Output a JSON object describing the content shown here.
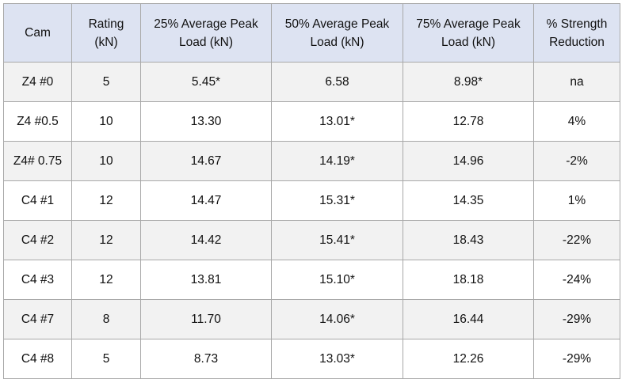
{
  "table": {
    "headers": [
      [
        "Cam"
      ],
      [
        "Rating",
        "(kN)"
      ],
      [
        "25% Average Peak",
        "Load (kN)"
      ],
      [
        "50% Average Peak",
        "Load (kN)"
      ],
      [
        "75% Average Peak",
        "Load (kN)"
      ],
      [
        "% Strength",
        "Reduction"
      ]
    ],
    "rows": [
      [
        "Z4 #0",
        "5",
        "5.45*",
        "6.58",
        "8.98*",
        "na"
      ],
      [
        "Z4 #0.5",
        "10",
        "13.30",
        "13.01*",
        "12.78",
        "4%"
      ],
      [
        "Z4# 0.75",
        "10",
        "14.67",
        "14.19*",
        "14.96",
        "-2%"
      ],
      [
        "C4 #1",
        "12",
        "14.47",
        "15.31*",
        "14.35",
        "1%"
      ],
      [
        "C4 #2",
        "12",
        "14.42",
        "15.41*",
        "18.43",
        "-22%"
      ],
      [
        "C4 #3",
        "12",
        "13.81",
        "15.10*",
        "18.18",
        "-24%"
      ],
      [
        "C4 #7",
        "8",
        "11.70",
        "14.06*",
        "16.44",
        "-29%"
      ],
      [
        "C4 #8",
        "5",
        "8.73",
        "13.03*",
        "12.26",
        "-29%"
      ]
    ]
  },
  "colors": {
    "header_bg": "#dde3f2",
    "stripe_bg": "#f2f2f2",
    "border": "#a8a8a8"
  }
}
